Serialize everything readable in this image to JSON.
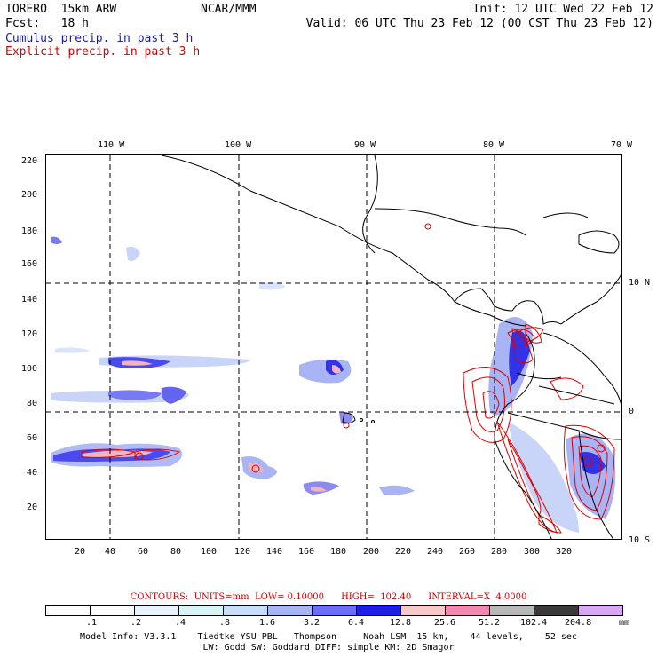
{
  "header": {
    "model": "TORERO  15km ARW",
    "org": "NCAR/MMM",
    "init": "Init: 12 UTC Wed 22 Feb 12",
    "fcst": "Fcst:   18 h",
    "valid": "Valid: 06 UTC Thu 23 Feb 12 (00 CST Thu 23 Feb 12)",
    "field1": "Cumulus precip. in past 3 h",
    "field2": "Explicit precip. in past 3 h"
  },
  "map": {
    "lon_labels": [
      "110 W",
      "100 W",
      "90 W",
      "80 W",
      "70 W"
    ],
    "lat_labels": [
      "10 N",
      "0",
      "10 S"
    ],
    "y_ticks": [
      "220",
      "200",
      "180",
      "160",
      "140",
      "120",
      "100",
      "80",
      "60",
      "40",
      "20"
    ],
    "x_ticks": [
      "20",
      "40",
      "60",
      "80",
      "100",
      "120",
      "140",
      "160",
      "180",
      "200",
      "220",
      "240",
      "260",
      "280",
      "300",
      "320"
    ]
  },
  "contours": {
    "text": "CONTOURS:  UNITS=mm  LOW= 0.10000      HIGH=  102.40      INTERVAL=X  4.0000"
  },
  "colorbar": {
    "labels": [
      ".1",
      ".2",
      ".4",
      ".8",
      "1.6",
      "3.2",
      "6.4",
      "12.8",
      "25.6",
      "51.2",
      "102.4",
      "204.8"
    ],
    "unit": "mm",
    "colors": [
      "#ffffff",
      "#ffffff",
      "#e8f2ff",
      "#d8f4f4",
      "#c8def8",
      "#a8b4f4",
      "#6e6ef4",
      "#1e1ee8",
      "#f8c8c8",
      "#f088b0",
      "#b8b8b8",
      "#3a3a3a",
      "#d8a8f4"
    ]
  },
  "model_info": {
    "line1": "Model Info: V3.3.1    Tiedtke YSU PBL   Thompson     Noah LSM  15 km,    44 levels,    52 sec",
    "line2": "LW: Godd SW: Goddard DIFF: simple KM: 2D Smagor"
  }
}
